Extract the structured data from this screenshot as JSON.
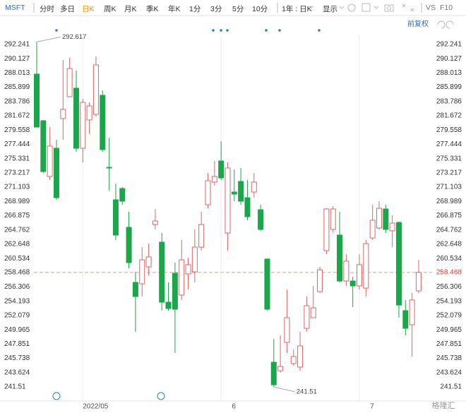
{
  "toolbar": {
    "symbol": "MSFT",
    "tabs": [
      "分时",
      "多日",
      "日K",
      "周K",
      "月K",
      "季K",
      "年K",
      "1分",
      "3分",
      "5分",
      "10分"
    ],
    "active_tab": 2,
    "range": "1年 : 日K",
    "display": "显示",
    "vs": "VS",
    "f10": "F10",
    "adjust": "前复权"
  },
  "watermark": "格隆汇",
  "chart_data": {
    "type": "candlestick",
    "categories": [
      null,
      null,
      null,
      null,
      null,
      null,
      null,
      "2022/05",
      null,
      null,
      null,
      null,
      null,
      null,
      null,
      null,
      null,
      null,
      null,
      null,
      null,
      null,
      null,
      null,
      null,
      null,
      null,
      null,
      "6",
      null,
      null,
      null,
      null,
      null,
      null,
      null,
      null,
      null,
      null,
      null,
      null,
      null,
      null,
      null,
      null,
      null,
      null,
      null,
      null,
      "7",
      null,
      null,
      null,
      null,
      null,
      null,
      null,
      null,
      null
    ],
    "candles": {
      "open": [
        287.85,
        280.94,
        272.68,
        276.86,
        281.26,
        284.5,
        285.76,
        276.86,
        281.05,
        281.88,
        284.71,
        274.04,
        269.23,
        270.9,
        265.15,
        256.99,
        256.78,
        259.29,
        265.57,
        262.95,
        254.06,
        258.35,
        255.11,
        258.25,
        258.56,
        262.22,
        268.5,
        271.84,
        274.98,
        264.31,
        270.38,
        271.95,
        269.54,
        270.38,
        267.76,
        260.44,
        245.17,
        243.92,
        248.1,
        244.96,
        244.44,
        250.19,
        251.76,
        255.63,
        261.7,
        264.84,
        264.0,
        257.2,
        257.2,
        256.47,
        256.15,
        263.58,
        265.04,
        267.87,
        264.63,
        265.88,
        252.81,
        250.71,
        255.74
      ],
      "close": [
        280.0,
        273.41,
        277.18,
        269.54,
        282.62,
        288.68,
        276.86,
        283.66,
        283.14,
        289.21,
        276.66,
        273.94,
        264.0,
        269.02,
        259.92,
        254.9,
        260.34,
        260.76,
        266.09,
        254.06,
        253.12,
        253.02,
        260.34,
        259.61,
        262.22,
        265.57,
        272.05,
        272.68,
        272.47,
        273.94,
        270.07,
        269.02,
        266.72,
        271.84,
        264.84,
        253.02,
        241.82,
        244.54,
        251.76,
        246.01,
        247.58,
        253.54,
        253.23,
        258.87,
        267.87,
        267.87,
        257.2,
        260.13,
        256.47,
        259.61,
        262.74,
        266.2,
        267.97,
        264.84,
        265.78,
        253.64,
        250.19,
        254.38,
        258.468
      ],
      "high": [
        292.617,
        281.05,
        280.0,
        278.12,
        289.94,
        290.25,
        288.37,
        284.19,
        283.66,
        290.46,
        285.44,
        278.43,
        271.63,
        271.11,
        267.45,
        258.56,
        262.22,
        262.74,
        267.87,
        264.31,
        256.99,
        259.92,
        263.27,
        260.65,
        264.84,
        267.45,
        273.2,
        274.98,
        277.91,
        274.77,
        273.73,
        273.94,
        272.16,
        273.2,
        268.5,
        260.55,
        248.62,
        249.15,
        255.94,
        247.05,
        249.67,
        254.9,
        256.47,
        259.29,
        267.97,
        268.29,
        267.45,
        261.17,
        257.83,
        261.17,
        263.27,
        268.5,
        269.02,
        268.5,
        266.93,
        265.99,
        254.38,
        255.42,
        260.34
      ],
      "low": [
        280.0,
        273.2,
        272.16,
        269.23,
        278.12,
        284.4,
        276.34,
        274.77,
        278.96,
        281.56,
        276.34,
        270.59,
        263.27,
        268.5,
        259.08,
        249.67,
        254.9,
        258.04,
        264.84,
        252.81,
        252.81,
        246.53,
        254.38,
        255.94,
        256.99,
        261.7,
        267.97,
        271.32,
        272.16,
        261.7,
        269.02,
        268.5,
        266.2,
        269.54,
        264.63,
        252.81,
        241.51,
        243.6,
        246.53,
        244.65,
        243.92,
        249.67,
        251.76,
        255.42,
        261.17,
        264.31,
        256.99,
        256.47,
        253.33,
        255.94,
        254.9,
        263.27,
        264.84,
        264.31,
        262.22,
        251.76,
        249.15,
        246.01,
        255.42
      ]
    },
    "up_color": "#e06666",
    "down_color": "#1ca64c",
    "max_price": 292.617,
    "min_price": 241.51,
    "last_price": 258.468,
    "last_price_color": "#e0403a",
    "ylim": [
      240.99,
      292.76
    ],
    "yticks": [
      292.241,
      290.127,
      288.013,
      285.899,
      283.786,
      281.672,
      279.558,
      277.444,
      275.331,
      273.217,
      271.103,
      268.989,
      266.875,
      264.762,
      262.648,
      260.534,
      258.468,
      256.306,
      254.193,
      252.079,
      249.965,
      247.851,
      245.738,
      243.624,
      241.51
    ]
  }
}
